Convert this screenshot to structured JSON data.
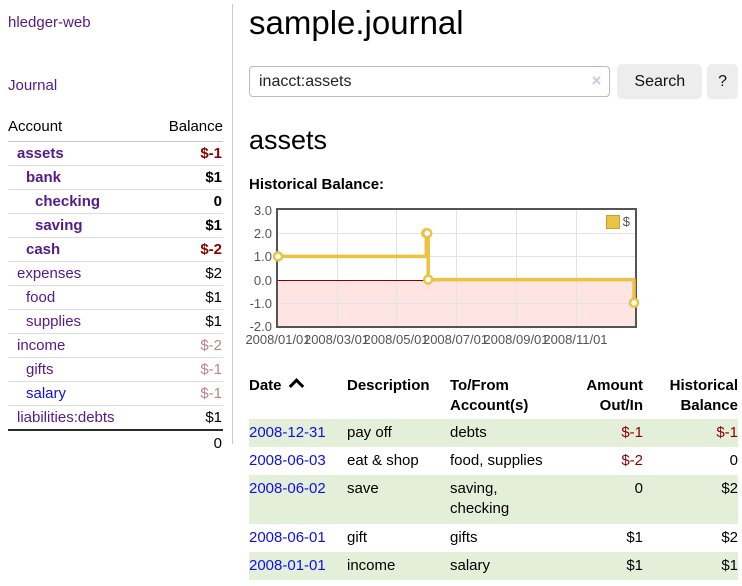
{
  "app": {
    "brand": "hledger-web",
    "nav": {
      "journal": "Journal"
    }
  },
  "colors": {
    "link_purple": "#551a8b",
    "link_blue": "#0f0fe8",
    "negative_strong": "#8b0000",
    "negative_muted": "#bf8484",
    "row_stripe_green": "#e4efda",
    "chart_line_gold": "#e9c341",
    "chart_negative_fill": "#fbdcdc",
    "chart_zero_line": "#8b0000"
  },
  "sidebar": {
    "accounts_table": {
      "col_account": "Account",
      "col_balance": "Balance",
      "rows": [
        {
          "name": "assets",
          "balance": "$-1",
          "depth": 1,
          "bold": true,
          "balance_tone": "negative-strong"
        },
        {
          "name": "bank",
          "balance": "$1",
          "depth": 2,
          "bold": true,
          "balance_tone": "normal"
        },
        {
          "name": "checking",
          "balance": "0",
          "depth": 3,
          "bold": true,
          "balance_tone": "normal"
        },
        {
          "name": "saving",
          "balance": "$1",
          "depth": 3,
          "bold": true,
          "balance_tone": "normal"
        },
        {
          "name": "cash",
          "balance": "$-2",
          "depth": 2,
          "bold": true,
          "balance_tone": "negative-strong"
        },
        {
          "name": "expenses",
          "balance": "$2",
          "depth": 1,
          "bold": false,
          "balance_tone": "normal"
        },
        {
          "name": "food",
          "balance": "$1",
          "depth": 2,
          "bold": false,
          "balance_tone": "normal"
        },
        {
          "name": "supplies",
          "balance": "$1",
          "depth": 2,
          "bold": false,
          "balance_tone": "normal"
        },
        {
          "name": "income",
          "balance": "$-2",
          "depth": 1,
          "bold": false,
          "balance_tone": "negative-muted"
        },
        {
          "name": "gifts",
          "balance": "$-1",
          "depth": 2,
          "bold": false,
          "balance_tone": "negative-muted"
        },
        {
          "name": "salary",
          "balance": "$-1",
          "depth": 2,
          "bold": false,
          "link_tone": "blue",
          "balance_tone": "negative-muted"
        },
        {
          "name": "liabilities:debts",
          "balance": "$1",
          "depth": 1,
          "bold": false,
          "balance_tone": "normal"
        }
      ],
      "total": "0"
    }
  },
  "main": {
    "title": "sample.journal",
    "search": {
      "value": "inacct:assets",
      "clear_icon": "×",
      "search_label": "Search",
      "help_label": "?"
    },
    "account_heading": "assets"
  },
  "chart_data": {
    "type": "line",
    "title": "Historical Balance:",
    "steps": true,
    "x_range": [
      "2008-01-01",
      "2009-01-01"
    ],
    "y_range": [
      -2,
      3
    ],
    "x_ticks": [
      {
        "date": "2008-01-01",
        "label": "2008/01/01"
      },
      {
        "date": "2008-03-01",
        "label": "2008/03/01"
      },
      {
        "date": "2008-05-01",
        "label": "2008/05/01"
      },
      {
        "date": "2008-07-01",
        "label": "2008/07/01"
      },
      {
        "date": "2008-09-01",
        "label": "2008/09/01"
      },
      {
        "date": "2008-11-01",
        "label": "2008/11/01"
      }
    ],
    "y_ticks": [
      {
        "value": 3,
        "label": "3.0"
      },
      {
        "value": 2,
        "label": "2.0"
      },
      {
        "value": 1,
        "label": "1.0"
      },
      {
        "value": 0,
        "label": "0.0"
      },
      {
        "value": -1,
        "label": "-1.0"
      },
      {
        "value": -2,
        "label": "-2.0"
      }
    ],
    "series": [
      {
        "name": "$",
        "color": "#e9c341",
        "points": [
          {
            "date": "2008-01-01",
            "value": 1
          },
          {
            "date": "2008-06-01",
            "value": 2
          },
          {
            "date": "2008-06-02",
            "value": 2
          },
          {
            "date": "2008-06-03",
            "value": 0
          },
          {
            "date": "2008-12-31",
            "value": -1
          }
        ]
      }
    ],
    "legend_position": "top-right",
    "grid": true
  },
  "register": {
    "columns": [
      "Date",
      "Description",
      "To/From Account(s)",
      "Amount Out/In",
      "Historical Balance"
    ],
    "rows": [
      {
        "date": "2008-12-31",
        "description": "pay off",
        "accounts": "debts",
        "amount": "$-1",
        "balance": "$-1"
      },
      {
        "date": "2008-06-03",
        "description": "eat & shop",
        "accounts": "food, supplies",
        "amount": "$-2",
        "balance": "0"
      },
      {
        "date": "2008-06-02",
        "description": "save",
        "accounts": "saving, checking",
        "amount": "0",
        "balance": "$2"
      },
      {
        "date": "2008-06-01",
        "description": "gift",
        "accounts": "gifts",
        "amount": "$1",
        "balance": "$2"
      },
      {
        "date": "2008-01-01",
        "description": "income",
        "accounts": "salary",
        "amount": "$1",
        "balance": "$1"
      }
    ]
  }
}
